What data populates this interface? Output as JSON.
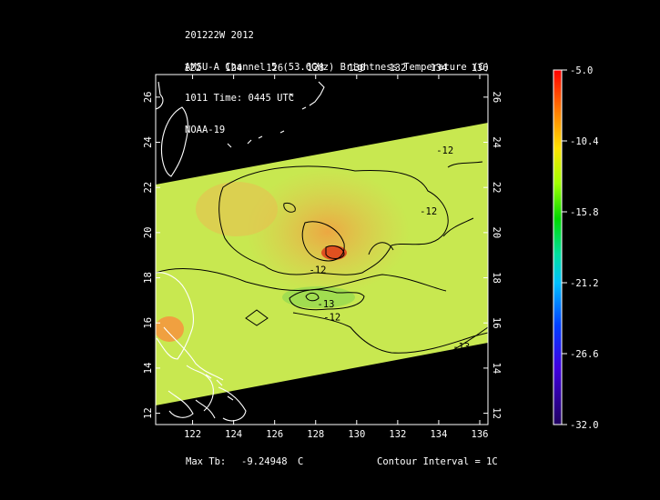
{
  "header": {
    "line1": "201222W 2012",
    "line2": "AMSU-A Channel 5 (53.6GHz) Brightness Temperature (C)",
    "line3": "1011 Time: 0445 UTC",
    "line4": "NOAA-19"
  },
  "footer": {
    "max_label": "Max Tb:",
    "max_value": "-9.24948",
    "max_unit": "C",
    "contour_label": "Contour Interval = 1C"
  },
  "colors": {
    "background": "#000000",
    "swath_base": "#c8e850",
    "warm_core": "#f07030",
    "land_outline": "#ffffff",
    "contour": "#000000"
  },
  "chart_data": {
    "type": "heatmap",
    "xlim": [
      120.2,
      136.4
    ],
    "ylim": [
      11.5,
      27.0
    ],
    "x_ticks": [
      "122",
      "124",
      "126",
      "128",
      "130",
      "132",
      "134",
      "136"
    ],
    "y_ticks": [
      "12",
      "14",
      "16",
      "18",
      "20",
      "22",
      "24",
      "26"
    ],
    "contour_labels": [
      {
        "text": "-12",
        "lon": 134.3,
        "lat": 23.5
      },
      {
        "text": "-12",
        "lon": 133.5,
        "lat": 20.8
      },
      {
        "text": "-12",
        "lon": 128.1,
        "lat": 18.2
      },
      {
        "text": "-13",
        "lon": 128.5,
        "lat": 16.7
      },
      {
        "text": "-12",
        "lon": 128.8,
        "lat": 16.1
      },
      {
        "text": "-13",
        "lon": 135.1,
        "lat": 14.8
      }
    ],
    "colorbar": {
      "min": -32.0,
      "max": -5.0,
      "labels": [
        "-5.0",
        "-10.4",
        "-15.8",
        "-21.2",
        "-26.6",
        "-32.0"
      ]
    },
    "max_tb": -9.24948,
    "contour_interval_c": 1
  }
}
